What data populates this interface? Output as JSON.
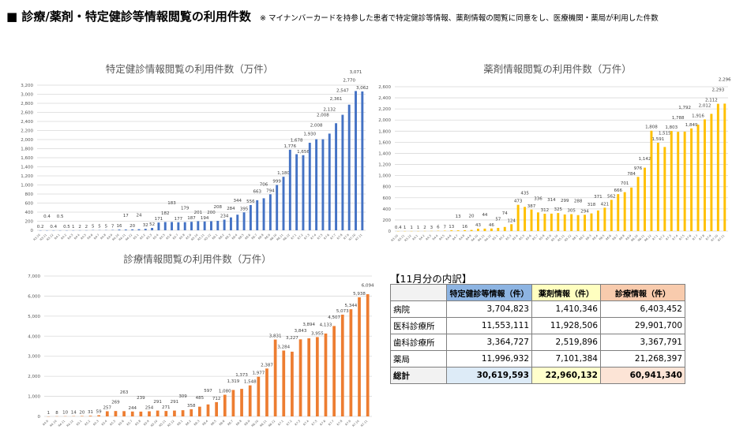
{
  "header": {
    "title": "■ 診療/薬剤・特定健診等情報閲覧の利用件数",
    "note": "※ マイナンバーカードを持参した患者で特定健診等情報、薬剤情報の閲覧に同意をし、医療機関・薬局が利用した件数"
  },
  "chart_data": [
    {
      "type": "bar",
      "title": "特定健診情報閲覧の利用件数（万件）",
      "color": "#4472c4",
      "ylim": [
        0,
        3200
      ],
      "ytick_step": 200,
      "grid": true,
      "categories": [
        "R3.10",
        "R3.11",
        "R3.12",
        "R4.1",
        "R4.2",
        "R4.3",
        "R4.4",
        "R4.5",
        "R4.6",
        "R4.7",
        "R4.8",
        "R4.9",
        "R4.10",
        "R4.11",
        "R4.12",
        "R5.1",
        "R5.2",
        "R5.3",
        "R5.4",
        "R5.5",
        "R5.6",
        "R5.7",
        "R5.8",
        "R5.9",
        "R5.10",
        "R5.11",
        "R5.12",
        "R6.1",
        "R6.2",
        "R6.3",
        "R6.4",
        "R6.5",
        "R6.6",
        "R6.7",
        "R6.8",
        "R6.9",
        "R6.10",
        "R6.11",
        "R6.12",
        "R7.1",
        "R7.2",
        "R7.3",
        "R7.4",
        "R7.5",
        "R7.6",
        "R7.7",
        "R7.8",
        "R7.9",
        "R7.10",
        "R7.11"
      ],
      "values": [
        0.2,
        0.4,
        0.4,
        0.5,
        0.5,
        1,
        2,
        2,
        5,
        5,
        5,
        7,
        16,
        17,
        20,
        24,
        32,
        52,
        171,
        182,
        183,
        177,
        179,
        187,
        201,
        194,
        200,
        208,
        234,
        284,
        344,
        395,
        556,
        663,
        706,
        794,
        999,
        1180,
        1776,
        1678,
        1656,
        1930,
        2008,
        2008,
        2132,
        2361,
        2547,
        2770,
        3071,
        3062
      ]
    },
    {
      "type": "bar",
      "title": "薬剤情報閲覧の利用件数（万件）",
      "color": "#ffc000",
      "ylim": [
        0,
        2600
      ],
      "ytick_step": 200,
      "grid": true,
      "categories": [
        "R3.10",
        "R3.11",
        "R3.12",
        "R4.1",
        "R4.2",
        "R4.3",
        "R4.4",
        "R4.5",
        "R4.6",
        "R4.7",
        "R4.8",
        "R4.9",
        "R4.10",
        "R4.11",
        "R4.12",
        "R5.1",
        "R5.2",
        "R5.3",
        "R5.4",
        "R5.5",
        "R5.6",
        "R5.7",
        "R5.8",
        "R5.9",
        "R5.10",
        "R5.11",
        "R5.12",
        "R6.1",
        "R6.2",
        "R6.3",
        "R6.4",
        "R6.5",
        "R6.6",
        "R6.7",
        "R6.8",
        "R6.9",
        "R6.10",
        "R6.11",
        "R6.12",
        "R7.1",
        "R7.2",
        "R7.3",
        "R7.4",
        "R7.5",
        "R7.6",
        "R7.7",
        "R7.8",
        "R7.9",
        "R7.10",
        "R7.11"
      ],
      "values": [
        0.4,
        1,
        1,
        1,
        2,
        3,
        6,
        7,
        13,
        13,
        16,
        20,
        43,
        44,
        46,
        57,
        74,
        124,
        473,
        435,
        387,
        336,
        312,
        314,
        325,
        299,
        305,
        288,
        294,
        318,
        371,
        421,
        562,
        666,
        701,
        784,
        976,
        1142,
        1808,
        1591,
        1515,
        1803,
        1788,
        1792,
        1849,
        1916,
        2012,
        2112,
        2293,
        2296
      ]
    },
    {
      "type": "bar",
      "title": "診療情報閲覧の利用件数（万件）",
      "color": "#ed7d31",
      "ylim": [
        0,
        7000
      ],
      "ytick_step": 1000,
      "grid": true,
      "categories": [
        "R4.9",
        "R4.10",
        "R4.11",
        "R4.12",
        "R5.1",
        "R5.2",
        "R5.3",
        "R5.4",
        "R5.5",
        "R5.6",
        "R5.7",
        "R5.8",
        "R5.9",
        "R5.10",
        "R5.11",
        "R5.12",
        "R6.1",
        "R6.2",
        "R6.3",
        "R6.4",
        "R6.5",
        "R6.6",
        "R6.7",
        "R6.8",
        "R6.9",
        "R6.10",
        "R6.11",
        "R6.12",
        "R7.1",
        "R7.2",
        "R7.3",
        "R7.4",
        "R7.5",
        "R7.6",
        "R7.7",
        "R7.8",
        "R7.9",
        "R7.10",
        "R7.11"
      ],
      "values": [
        1,
        8,
        10,
        14,
        20,
        31,
        59,
        257,
        269,
        263,
        244,
        239,
        254,
        291,
        271,
        291,
        309,
        358,
        485,
        597,
        712,
        1080,
        1319,
        1373,
        1548,
        1977,
        2387,
        3831,
        3284,
        3227,
        3843,
        3894,
        3955,
        4133,
        4507,
        5073,
        5344,
        5938,
        6094
      ]
    }
  ],
  "table": {
    "caption": "【11月分の内訳】",
    "headers": [
      "",
      "特定健診等情報（件）",
      "薬剤情報（件）",
      "診療情報（件）"
    ],
    "rows": [
      [
        "病院",
        "3,704,823",
        "1,410,346",
        "6,403,452"
      ],
      [
        "医科診療所",
        "11,553,111",
        "11,928,506",
        "29,901,700"
      ],
      [
        "歯科診療所",
        "3,364,727",
        "2,519,896",
        "3,367,791"
      ],
      [
        "薬局",
        "11,996,932",
        "7,101,384",
        "21,268,397"
      ]
    ],
    "total": [
      "総計",
      "30,619,593",
      "22,960,132",
      "60,941,340"
    ]
  }
}
